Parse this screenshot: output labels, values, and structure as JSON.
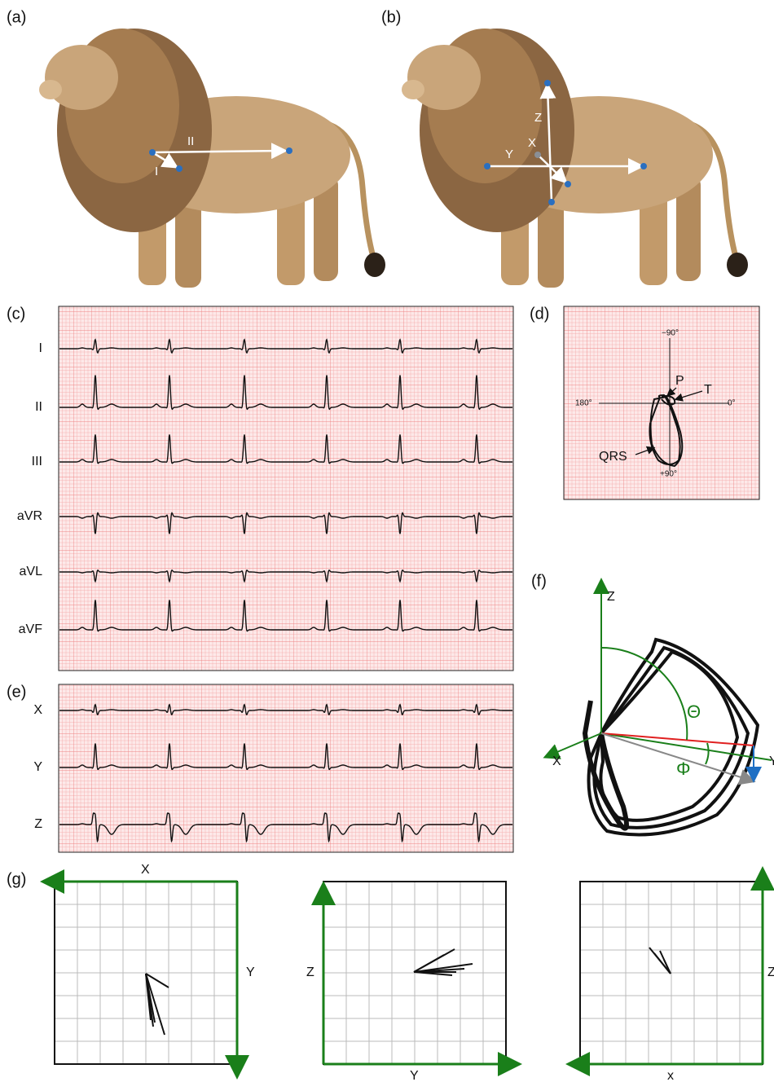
{
  "panel_labels": [
    "(a)",
    "(b)",
    "(c)",
    "(d)",
    "(e)",
    "(f)",
    "(g)"
  ],
  "a_leads": [
    "II",
    "I"
  ],
  "b_axes": [
    "Z",
    "X",
    "Y"
  ],
  "c_leads": [
    "I",
    "II",
    "III",
    "aVR",
    "aVL",
    "aVF"
  ],
  "d": {
    "angles": [
      "−90°",
      "180°",
      "0°",
      "+90°"
    ],
    "waves": [
      "P",
      "T",
      "QRS"
    ]
  },
  "e_leads": [
    "X",
    "Y",
    "Z"
  ],
  "f": {
    "axes": [
      "Z",
      "X",
      "Y"
    ],
    "angles": [
      "Θ",
      "Φ"
    ]
  },
  "g": [
    {
      "labels": [
        "X",
        "Y"
      ]
    },
    {
      "labels": [
        "Z",
        "Y"
      ]
    },
    {
      "labels": [
        "x",
        "Z"
      ]
    }
  ]
}
